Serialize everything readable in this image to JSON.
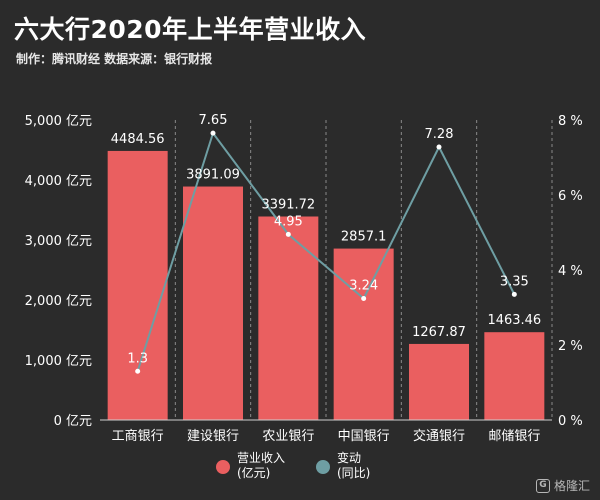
{
  "header": {
    "title": "六大行2020年上半年营业收入",
    "subtitle": "制作：腾讯财经  数据来源：银行财报"
  },
  "watermark": {
    "icon": "G",
    "text": "格隆汇"
  },
  "colors": {
    "bar": "#ea5f60",
    "line": "#6e9ea3",
    "background": "#2b2b2b",
    "axis_text": "#ffffff"
  },
  "chart_data": {
    "type": "bar",
    "categories": [
      "工商银行",
      "建设银行",
      "农业银行",
      "中国银行",
      "交通银行",
      "邮储银行"
    ],
    "series": [
      {
        "name": "营业收入\n(亿元)",
        "type": "bar",
        "axis": "left",
        "values": [
          4484.56,
          3891.09,
          3391.72,
          2857.1,
          1267.87,
          1463.46
        ]
      },
      {
        "name": "变动\n(同比)",
        "type": "line",
        "axis": "right",
        "values": [
          1.3,
          7.65,
          4.95,
          3.24,
          7.28,
          3.35
        ]
      }
    ],
    "y_left": {
      "min": 0,
      "max": 5000,
      "ticks": [
        "0 亿元",
        "1,000 亿元",
        "2,000 亿元",
        "3,000 亿元",
        "4,000 亿元",
        "5,000 亿元"
      ]
    },
    "y_right": {
      "min": 0,
      "max": 8,
      "ticks": [
        "0 %",
        "2 %",
        "4 %",
        "6 %",
        "8 %"
      ]
    },
    "legend_position": "bottom"
  }
}
